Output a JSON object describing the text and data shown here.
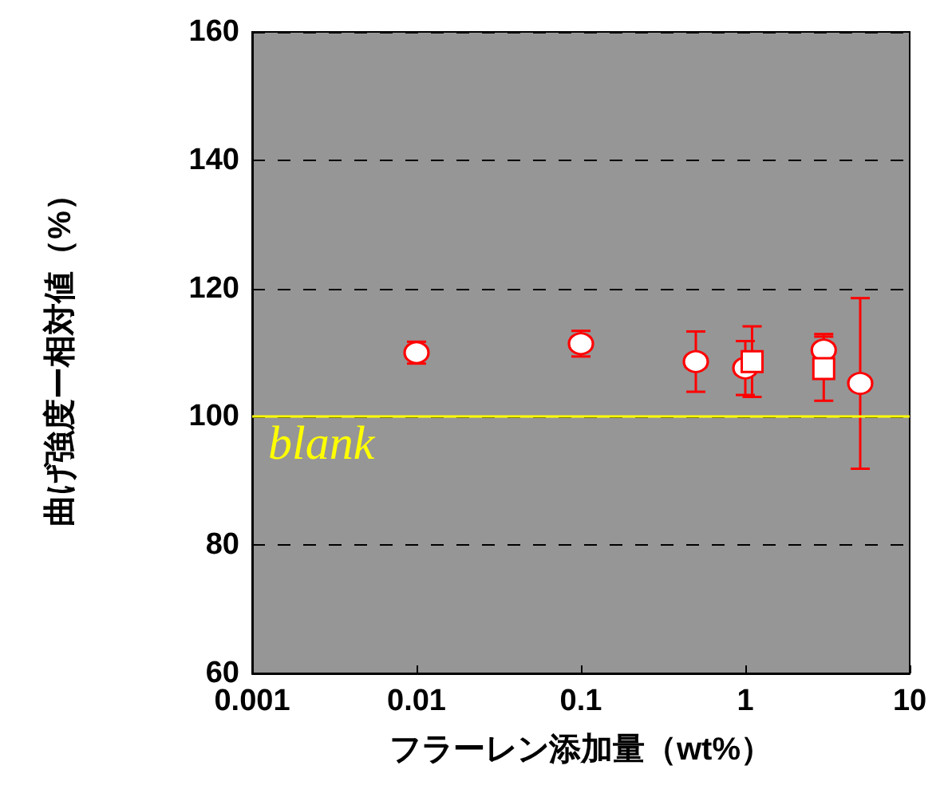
{
  "chart_data": {
    "type": "scatter",
    "xlabel": "フラーレン添加量（wt%）",
    "ylabel": "曲げ強度ー相対値（%）",
    "xlim": [
      0.001,
      10
    ],
    "xticks": [
      0.001,
      0.01,
      0.1,
      1,
      10
    ],
    "ylim": [
      60,
      160
    ],
    "yticks": [
      60,
      80,
      100,
      120,
      140,
      160
    ],
    "log": "x",
    "grid": "y",
    "series": [
      {
        "color": "#ff0000",
        "marker": "circle",
        "x": [
          0.01,
          0.1,
          0.5,
          1,
          3,
          5
        ],
        "values": [
          110,
          111.4,
          108.6,
          107.6,
          110.4,
          105.2
        ],
        "errors": [
          1.7,
          2,
          4.7,
          4.2,
          2.5,
          13.3
        ]
      },
      {
        "color": "#ff0000",
        "marker": "square",
        "x": [
          1.1,
          3
        ],
        "values": [
          108.6,
          107.5
        ],
        "errors": [
          5.5,
          5
        ]
      }
    ],
    "ref_lines": [
      {
        "axis": "y",
        "value": 100,
        "label": "blank",
        "color": "#ffff00"
      }
    ]
  }
}
